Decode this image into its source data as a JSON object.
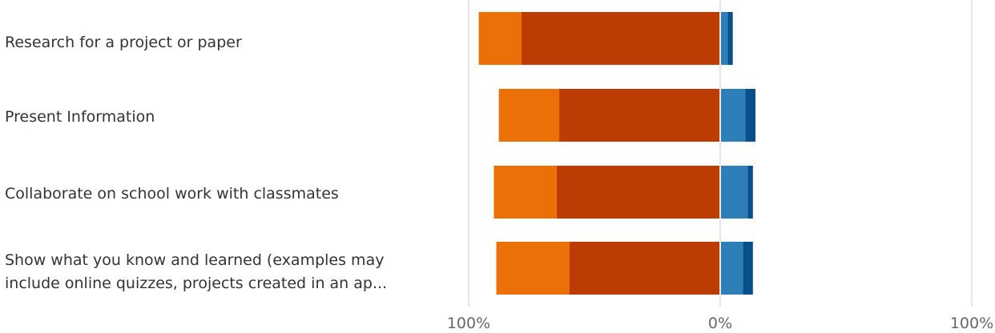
{
  "chart_data": {
    "type": "bar",
    "stacked": true,
    "orientation": "horizontal",
    "diverging": true,
    "categories": [
      "Research for a project or paper",
      "Present Information",
      "Collaborate on school work with classmates",
      "Show what you know and learned (examples may include online quizzes, projects created in an ap..."
    ],
    "series": [
      {
        "side": "negative",
        "color": "#BC3C04",
        "values": [
          -79,
          -64,
          -65,
          -60
        ]
      },
      {
        "side": "negative",
        "color": "#EC7008",
        "values": [
          -17,
          -24,
          -25,
          -29
        ]
      },
      {
        "side": "positive",
        "color": "#2E7EB8",
        "values": [
          3,
          10,
          11,
          9
        ]
      },
      {
        "side": "positive",
        "color": "#08508C",
        "values": [
          2,
          4,
          2,
          4
        ]
      }
    ],
    "xlim": [
      -100,
      100
    ],
    "x_tick_labels": [
      "100%",
      "0%",
      "100%"
    ],
    "grid": true,
    "legend": "none"
  }
}
